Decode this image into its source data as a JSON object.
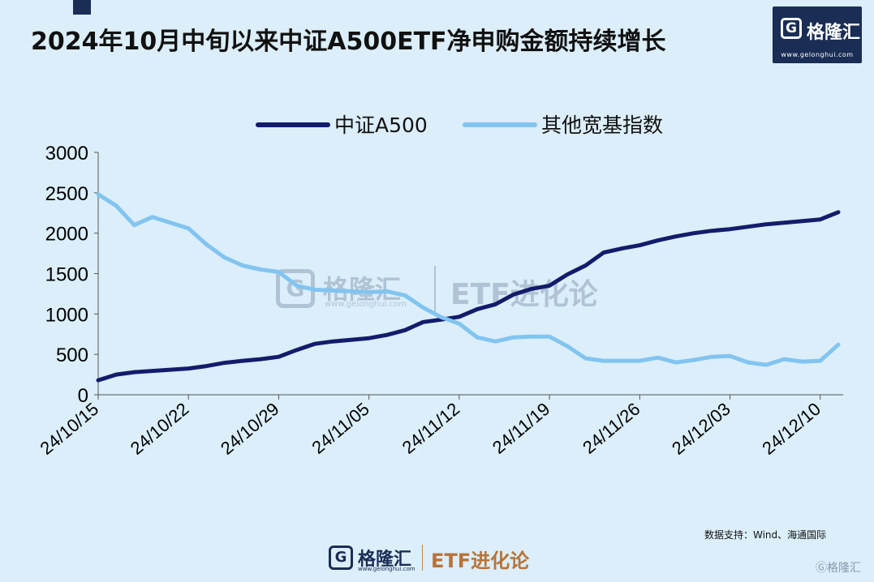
{
  "header": {
    "title": "2024年10月中旬以来中证A500ETF净申购金额持续增长"
  },
  "logo": {
    "glyph": "G",
    "name": "格隆汇",
    "url": "www.gelonghui.com"
  },
  "watermark": {
    "glyph": "G",
    "name": "格隆汇",
    "url": "www.gelonghui.com",
    "etf": "ETF进化论"
  },
  "footer": {
    "source": "数据支持：Wind、海通国际",
    "brand_glyph": "G",
    "brand_name": "格隆汇",
    "brand_url": "www.gelonghui.com",
    "brand_etf": "ETF进化论",
    "corner_mark": "Ⓖ格隆汇"
  },
  "colors": {
    "series_a500": "#131c6b",
    "series_other": "#82c4f0",
    "background": "#dbeef9",
    "brand": "#1a2d55"
  },
  "chart_data": {
    "type": "line",
    "title": "",
    "xlabel": "",
    "ylabel": "",
    "ylim": [
      0,
      3000
    ],
    "yticks": [
      0,
      500,
      1000,
      1500,
      2000,
      2500,
      3000
    ],
    "xticks": [
      "24/10/15",
      "24/10/22",
      "24/10/29",
      "24/11/05",
      "24/11/12",
      "24/11/19",
      "24/11/26",
      "24/12/03",
      "24/12/10"
    ],
    "legend_position": "top-center",
    "x": [
      "10/15",
      "10/16",
      "10/17",
      "10/18",
      "10/21",
      "10/22",
      "10/23",
      "10/24",
      "10/25",
      "10/28",
      "10/29",
      "10/30",
      "10/31",
      "11/01",
      "11/04",
      "11/05",
      "11/06",
      "11/07",
      "11/08",
      "11/11",
      "11/12",
      "11/13",
      "11/14",
      "11/15",
      "11/18",
      "11/19",
      "11/20",
      "11/21",
      "11/22",
      "11/25",
      "11/26",
      "11/27",
      "11/28",
      "11/29",
      "12/02",
      "12/03",
      "12/04",
      "12/05",
      "12/06",
      "12/09",
      "12/10",
      "12/11"
    ],
    "series": [
      {
        "name": "中证A500",
        "values": [
          180,
          250,
          280,
          295,
          310,
          325,
          355,
          395,
          420,
          440,
          470,
          555,
          630,
          660,
          680,
          700,
          740,
          800,
          900,
          930,
          965,
          1060,
          1120,
          1240,
          1310,
          1350,
          1490,
          1600,
          1760,
          1810,
          1850,
          1910,
          1960,
          2000,
          2030,
          2050,
          2080,
          2110,
          2130,
          2150,
          2170,
          2260
        ]
      },
      {
        "name": "其他宽基指数",
        "values": [
          2480,
          2340,
          2100,
          2200,
          2130,
          2060,
          1860,
          1700,
          1600,
          1550,
          1520,
          1350,
          1300,
          1290,
          1280,
          1270,
          1280,
          1230,
          1080,
          960,
          880,
          710,
          660,
          710,
          720,
          720,
          600,
          450,
          420,
          420,
          420,
          460,
          400,
          430,
          470,
          480,
          400,
          370,
          440,
          410,
          420,
          620
        ]
      }
    ]
  }
}
